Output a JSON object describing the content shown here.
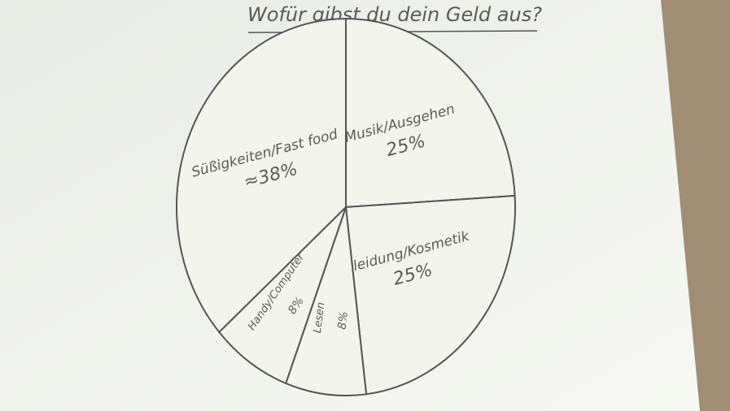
{
  "chart_data": {
    "type": "pie",
    "title": "Wofür gibst du dein Geld aus?",
    "categories": [
      "Musik/Ausgehen",
      "Kleidung/Kosmetik",
      "Lesen",
      "Handy/Computer",
      "Süßigkeiten/Fast food"
    ],
    "values": [
      25,
      25,
      8,
      8,
      38
    ],
    "value_labels": [
      "25%",
      "25%",
      "8%",
      "8%",
      "≈38%"
    ],
    "color": "#f4f4ee"
  }
}
